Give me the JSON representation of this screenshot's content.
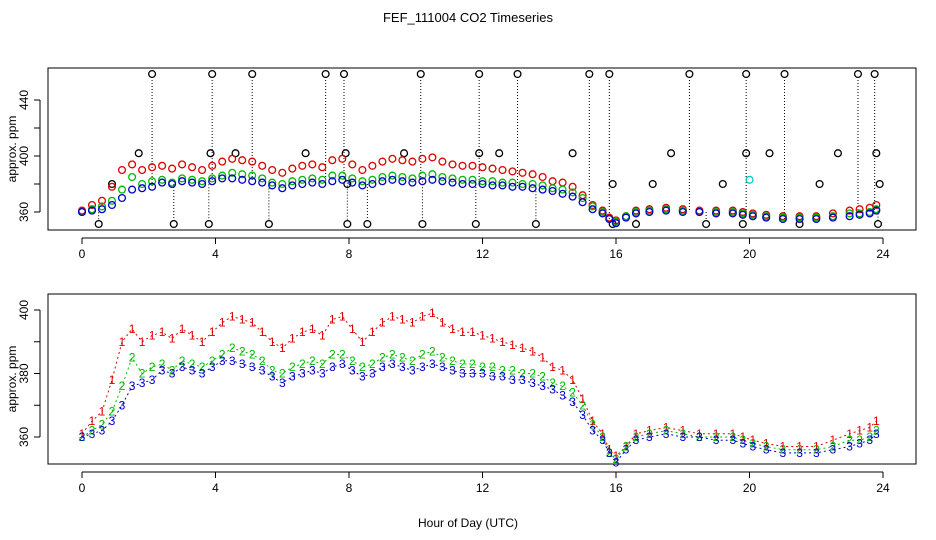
{
  "title": "FEF_111004  CO2 Timeseries",
  "xlabel": "Hour of Day (UTC)",
  "colors": {
    "series1": "#dd0000",
    "series2": "#00bb00",
    "series3": "#0000cc",
    "outlier": "#000000",
    "cyan": "#00cccc",
    "axis": "#000000"
  },
  "chart_data": [
    {
      "type": "scatter",
      "ylabel": "approx. ppm",
      "xlim": [
        0,
        24
      ],
      "ylim": [
        350,
        460
      ],
      "xticks": [
        0,
        4,
        8,
        12,
        16,
        20,
        24
      ],
      "yticks": [
        360,
        400,
        440
      ],
      "yminor": [
        380,
        420
      ],
      "outliers_high": [
        2.1,
        3.9,
        5.1,
        7.3,
        7.85,
        10.15,
        11.9,
        13.05,
        15.2,
        15.8,
        18.2,
        19.9,
        21.05,
        23.25,
        23.75
      ],
      "outliers_low": [
        0.5,
        2.75,
        3.8,
        5.6,
        7.95,
        8.55,
        10.2,
        11.8,
        13.6,
        15.9,
        16.6,
        18.7,
        19.8,
        21.5,
        23.85
      ],
      "outliers_mid": [
        {
          "x": 0.9,
          "y": 380
        },
        {
          "x": 1.7,
          "y": 402
        },
        {
          "x": 3.85,
          "y": 402
        },
        {
          "x": 4.6,
          "y": 402
        },
        {
          "x": 6.7,
          "y": 402
        },
        {
          "x": 7.9,
          "y": 402
        },
        {
          "x": 7.95,
          "y": 380
        },
        {
          "x": 9.65,
          "y": 402
        },
        {
          "x": 11.9,
          "y": 402
        },
        {
          "x": 12.5,
          "y": 402
        },
        {
          "x": 14.7,
          "y": 402
        },
        {
          "x": 15.9,
          "y": 380
        },
        {
          "x": 17.1,
          "y": 380
        },
        {
          "x": 17.65,
          "y": 402
        },
        {
          "x": 19.2,
          "y": 380
        },
        {
          "x": 19.9,
          "y": 402
        },
        {
          "x": 20.6,
          "y": 402
        },
        {
          "x": 22.1,
          "y": 380
        },
        {
          "x": 22.65,
          "y": 402
        },
        {
          "x": 23.8,
          "y": 402
        },
        {
          "x": 23.9,
          "y": 380
        }
      ],
      "cyan_point": {
        "x": 20.0,
        "y": 383
      }
    },
    {
      "type": "scatter",
      "ylabel": "approx. ppm",
      "xlim": [
        0,
        24
      ],
      "ylim": [
        350,
        405
      ],
      "xticks": [
        0,
        4,
        8,
        12,
        16,
        20,
        24
      ],
      "yticks": [
        360,
        380,
        400
      ],
      "yminor": [
        370,
        390
      ],
      "series_labels": [
        "1",
        "2",
        "3"
      ]
    }
  ],
  "series": [
    {
      "name": "1",
      "x": [
        0.0,
        0.3,
        0.6,
        0.9,
        1.2,
        1.5,
        1.8,
        2.1,
        2.4,
        2.7,
        3.0,
        3.3,
        3.6,
        3.9,
        4.2,
        4.5,
        4.8,
        5.1,
        5.4,
        5.7,
        6.0,
        6.3,
        6.6,
        6.9,
        7.2,
        7.5,
        7.8,
        8.1,
        8.4,
        8.7,
        9.0,
        9.3,
        9.6,
        9.9,
        10.2,
        10.5,
        10.8,
        11.1,
        11.4,
        11.7,
        12.0,
        12.3,
        12.6,
        12.9,
        13.2,
        13.5,
        13.8,
        14.1,
        14.4,
        14.7,
        15.0,
        15.3,
        15.6,
        15.8,
        16.0,
        16.3,
        16.6,
        17.0,
        17.5,
        18.0,
        18.5,
        19.0,
        19.5,
        19.8,
        20.1,
        20.5,
        21.0,
        21.5,
        22.0,
        22.5,
        23.0,
        23.3,
        23.6,
        23.8
      ],
      "y": [
        361,
        365,
        368,
        378,
        390,
        394,
        390,
        392,
        393,
        391,
        394,
        392,
        390,
        393,
        396,
        398,
        397,
        396,
        393,
        390,
        388,
        391,
        393,
        394,
        392,
        397,
        398,
        394,
        390,
        393,
        396,
        398,
        397,
        396,
        398,
        399,
        396,
        394,
        393,
        393,
        392,
        391,
        390,
        389,
        388,
        387,
        385,
        382,
        381,
        378,
        372,
        365,
        361,
        356,
        354,
        357,
        361,
        362,
        363,
        362,
        361,
        361,
        361,
        360,
        359,
        358,
        357,
        357,
        357,
        359,
        361,
        362,
        363,
        365
      ]
    },
    {
      "name": "2",
      "x": [
        0.0,
        0.3,
        0.6,
        0.9,
        1.2,
        1.5,
        1.8,
        2.1,
        2.4,
        2.7,
        3.0,
        3.3,
        3.6,
        3.9,
        4.2,
        4.5,
        4.8,
        5.1,
        5.4,
        5.7,
        6.0,
        6.3,
        6.6,
        6.9,
        7.2,
        7.5,
        7.8,
        8.1,
        8.4,
        8.7,
        9.0,
        9.3,
        9.6,
        9.9,
        10.2,
        10.5,
        10.8,
        11.1,
        11.4,
        11.7,
        12.0,
        12.3,
        12.6,
        12.9,
        13.2,
        13.5,
        13.8,
        14.1,
        14.4,
        14.7,
        15.0,
        15.3,
        15.6,
        15.8,
        16.0,
        16.3,
        16.6,
        17.0,
        17.5,
        18.0,
        18.5,
        19.0,
        19.5,
        19.8,
        20.1,
        20.5,
        21.0,
        21.5,
        22.0,
        22.5,
        23.0,
        23.3,
        23.6,
        23.8
      ],
      "y": [
        360,
        362,
        364,
        368,
        376,
        385,
        380,
        382,
        383,
        381,
        384,
        383,
        382,
        384,
        386,
        388,
        387,
        386,
        384,
        381,
        380,
        382,
        383,
        384,
        383,
        386,
        386,
        384,
        382,
        383,
        385,
        386,
        385,
        384,
        386,
        387,
        385,
        384,
        383,
        383,
        382,
        382,
        381,
        381,
        380,
        380,
        379,
        377,
        376,
        374,
        370,
        364,
        360,
        355,
        353,
        357,
        360,
        361,
        362,
        361,
        360,
        360,
        360,
        359,
        358,
        357,
        356,
        356,
        356,
        357,
        359,
        359,
        360,
        362
      ]
    },
    {
      "name": "3",
      "x": [
        0.0,
        0.3,
        0.6,
        0.9,
        1.2,
        1.5,
        1.8,
        2.1,
        2.4,
        2.7,
        3.0,
        3.3,
        3.6,
        3.9,
        4.2,
        4.5,
        4.8,
        5.1,
        5.4,
        5.7,
        6.0,
        6.3,
        6.6,
        6.9,
        7.2,
        7.5,
        7.8,
        8.1,
        8.4,
        8.7,
        9.0,
        9.3,
        9.6,
        9.9,
        10.2,
        10.5,
        10.8,
        11.1,
        11.4,
        11.7,
        12.0,
        12.3,
        12.6,
        12.9,
        13.2,
        13.5,
        13.8,
        14.1,
        14.4,
        14.7,
        15.0,
        15.3,
        15.6,
        15.8,
        16.0,
        16.3,
        16.6,
        17.0,
        17.5,
        18.0,
        18.5,
        19.0,
        19.5,
        19.8,
        20.1,
        20.5,
        21.0,
        21.5,
        22.0,
        22.5,
        23.0,
        23.3,
        23.6,
        23.8
      ],
      "y": [
        360,
        361,
        362,
        365,
        370,
        376,
        377,
        378,
        381,
        380,
        382,
        381,
        380,
        382,
        384,
        384,
        383,
        382,
        381,
        379,
        377,
        379,
        380,
        381,
        380,
        382,
        383,
        381,
        379,
        380,
        382,
        383,
        382,
        381,
        382,
        383,
        382,
        381,
        380,
        380,
        380,
        379,
        379,
        378,
        378,
        377,
        376,
        375,
        373,
        371,
        367,
        362,
        359,
        355,
        352,
        356,
        359,
        360,
        361,
        360,
        360,
        359,
        359,
        358,
        357,
        356,
        355,
        355,
        355,
        356,
        357,
        358,
        359,
        361
      ]
    }
  ]
}
